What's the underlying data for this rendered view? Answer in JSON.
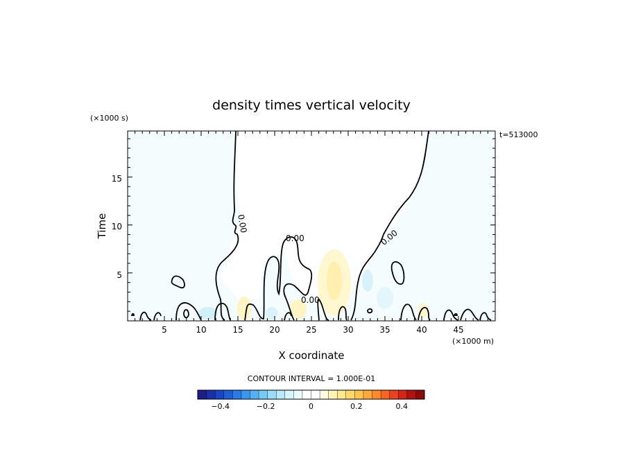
{
  "chart_data": {
    "type": "heatmap",
    "title": "density times vertical velocity",
    "xlabel": "X coordinate",
    "ylabel": "Time",
    "x_units": "(×1000 m)",
    "y_units": "(×1000 s)",
    "time_label": "t=513000",
    "x_ticks": [
      "5",
      "10",
      "15",
      "20",
      "25",
      "30",
      "35",
      "40",
      "45"
    ],
    "y_ticks": [
      "5",
      "10",
      "15"
    ],
    "xlim": [
      0,
      50
    ],
    "ylim": [
      0,
      19.8
    ],
    "contour_labels": [
      "0.00",
      "0.00",
      "0.00",
      "0.00"
    ],
    "contour_interval": "CONTOUR INTERVAL = 1.000E-01",
    "colorbar": {
      "ticks": [
        "−0.4",
        "−0.2",
        "0",
        "0.2",
        "0.4"
      ],
      "tick_values": [
        -0.4,
        -0.2,
        0,
        0.2,
        0.4
      ],
      "range": [
        -0.5,
        0.5
      ],
      "colors": [
        "#1d1d8c",
        "#1a2fa8",
        "#1846c4",
        "#1e5fd8",
        "#2a7be6",
        "#3a96ee",
        "#55b0f4",
        "#76c8f7",
        "#98dcf8",
        "#b8eafa",
        "#d6f4fc",
        "#eafafd",
        "#ffffff",
        "#ffffff",
        "#fffbe0",
        "#fff3b8",
        "#ffe98f",
        "#ffda6a",
        "#ffc44f",
        "#ffa83c",
        "#ff8a2e",
        "#f76522",
        "#e8441c",
        "#d42418",
        "#b01212",
        "#8c0a0a"
      ]
    }
  }
}
